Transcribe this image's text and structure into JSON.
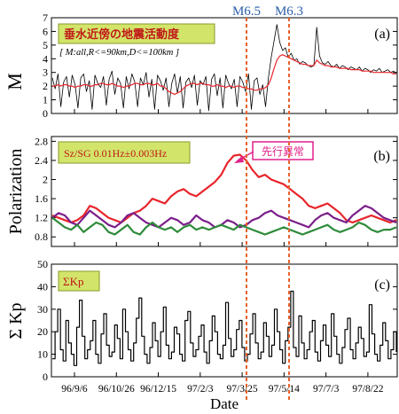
{
  "chart_data": [
    {
      "type": "line",
      "panel": "a",
      "panel_label": "(a)",
      "title_box": "垂水近傍の地震活動度",
      "subtitle": "[ M:all,R<=90km,D<=100km ]",
      "ylabel": "M",
      "ylim": [
        0,
        7
      ],
      "y_ticks": [
        "0",
        "1",
        "2",
        "3",
        "4",
        "5",
        "6",
        "7"
      ],
      "grid": false,
      "series": [
        {
          "color": "#000000",
          "values": [
            2.6,
            1.8,
            2.9,
            0.5,
            2.3,
            2.7,
            1.2,
            2.8,
            2.1,
            0.4,
            2.6,
            2.9,
            1.6,
            2.4,
            0.3,
            2.8,
            2.2,
            1.9,
            2.7,
            0.6,
            2.5,
            3.1,
            1.4,
            2.6,
            2.2,
            0.4,
            2.7,
            1.8,
            2.9,
            2.3,
            0.5,
            2.6,
            2.1,
            3.0,
            1.2,
            2.5,
            0.3,
            2.8,
            2.4,
            1.7,
            2.6,
            0.5,
            2.2,
            2.9,
            1.5,
            2.7,
            0.4,
            2.3,
            2.6,
            1.9,
            2.8,
            0.6,
            2.4,
            2.1,
            2.7,
            0.2,
            2.5,
            2.9,
            1.3,
            2.6,
            0.4,
            2.8,
            2.2,
            1.8,
            2.5,
            0.5,
            2.7,
            2.3,
            1.6,
            2.9,
            0.3,
            2.4,
            2.6,
            1.4,
            2.1,
            0.5,
            2.6,
            4.1,
            5.3,
            6.5,
            5.2,
            4.6,
            4.8,
            4.1,
            4.4,
            3.9,
            4.0,
            3.6,
            3.8,
            3.7,
            3.5,
            3.4,
            3.5,
            6.3,
            4.2,
            3.7,
            3.6,
            3.8,
            3.5,
            3.4,
            3.6,
            3.3,
            3.5,
            3.4,
            3.2,
            3.4,
            3.3,
            3.2,
            3.4,
            3.1,
            3.3,
            3.2,
            3.0,
            3.2,
            3.1,
            3.3,
            3.0,
            3.1,
            3.2,
            3.0,
            3.1,
            2.9
          ]
        },
        {
          "color": "#e8252b",
          "values": [
            2.0,
            2.0,
            2.1,
            2.0,
            2.1,
            2.1,
            2.0,
            2.0,
            1.9,
            2.0,
            2.0,
            2.1,
            2.1,
            2.0,
            2.0,
            2.1,
            2.1,
            2.2,
            2.2,
            2.1,
            2.1,
            2.2,
            2.1,
            2.0,
            2.0,
            1.9,
            2.0,
            2.0,
            2.1,
            2.2,
            2.2,
            2.1,
            2.1,
            2.2,
            2.2,
            2.1,
            2.1,
            2.2,
            2.0,
            2.0,
            1.8,
            1.6,
            1.5,
            1.4,
            1.5,
            1.6,
            1.8,
            2.0,
            2.1,
            2.2,
            2.2,
            2.1,
            2.2,
            2.2,
            2.1,
            2.1,
            2.0,
            2.0,
            2.1,
            2.0,
            2.0,
            1.9,
            2.0,
            2.0,
            1.9,
            2.0,
            2.0,
            1.9,
            1.9,
            1.8,
            1.8,
            1.7,
            1.7,
            1.8,
            1.8,
            1.9,
            2.1,
            2.6,
            3.3,
            3.9,
            4.2,
            4.3,
            4.2,
            4.1,
            4.0,
            3.9,
            3.8,
            3.7,
            3.6,
            3.6,
            3.5,
            3.5,
            3.5,
            3.9,
            3.7,
            3.6,
            3.5,
            3.5,
            3.4,
            3.4,
            3.4,
            3.3,
            3.3,
            3.3,
            3.3,
            3.2,
            3.2,
            3.2,
            3.2,
            3.1,
            3.1,
            3.1,
            3.1,
            3.0,
            3.0,
            3.0,
            3.0,
            3.0,
            3.0,
            3.0,
            2.9,
            2.9
          ]
        }
      ]
    },
    {
      "type": "line",
      "panel": "b",
      "panel_label": "(b)",
      "title_box": "Sz/SG  0.01Hz±0.003Hz",
      "annotation": "先行異常",
      "ylabel": "Polarization",
      "ylim": [
        0.6,
        2.9
      ],
      "y_ticks": [
        "0.8",
        "1.2",
        "1.6",
        "2",
        "2.4",
        "2.8"
      ],
      "grid": false,
      "series": [
        {
          "color": "#e8252b",
          "values": [
            1.25,
            1.2,
            1.15,
            1.1,
            1.15,
            1.25,
            1.45,
            1.4,
            1.3,
            1.2,
            1.15,
            1.1,
            1.2,
            1.3,
            1.35,
            1.45,
            1.6,
            1.55,
            1.5,
            1.65,
            1.75,
            1.8,
            1.7,
            1.65,
            1.75,
            1.85,
            1.95,
            2.1,
            2.35,
            2.5,
            2.52,
            2.4,
            2.2,
            2.05,
            2.1,
            2.0,
            1.95,
            1.9,
            1.8,
            1.7,
            1.6,
            1.45,
            1.4,
            1.45,
            1.5,
            1.4,
            1.3,
            1.15,
            1.1,
            1.15,
            1.2,
            1.25,
            1.2,
            1.15,
            1.1,
            1.15
          ]
        },
        {
          "color": "#7b1f8a",
          "values": [
            1.2,
            1.3,
            1.25,
            1.1,
            1.05,
            1.2,
            1.35,
            1.25,
            1.15,
            1.05,
            1.0,
            1.1,
            1.25,
            1.3,
            1.2,
            1.1,
            1.05,
            1.0,
            1.1,
            1.2,
            1.15,
            1.05,
            1.1,
            1.25,
            1.15,
            1.1,
            1.0,
            1.05,
            1.15,
            1.1,
            1.0,
            1.05,
            1.15,
            1.2,
            1.3,
            1.35,
            1.25,
            1.2,
            1.15,
            1.1,
            1.05,
            1.0,
            1.15,
            1.25,
            1.3,
            1.2,
            1.15,
            1.1,
            1.25,
            1.35,
            1.45,
            1.4,
            1.3,
            1.2,
            1.15,
            1.1
          ]
        },
        {
          "color": "#2e8b3a",
          "values": [
            1.2,
            1.1,
            1.0,
            0.95,
            1.05,
            0.9,
            1.0,
            1.1,
            1.05,
            0.9,
            0.85,
            0.95,
            1.05,
            0.9,
            0.85,
            1.0,
            1.1,
            1.0,
            0.95,
            1.0,
            0.9,
            1.0,
            1.05,
            0.95,
            1.0,
            0.95,
            1.0,
            1.05,
            1.0,
            0.95,
            1.05,
            1.0,
            0.95,
            0.9,
            0.85,
            0.9,
            0.95,
            1.0,
            0.95,
            0.9,
            0.85,
            0.9,
            0.95,
            1.0,
            1.05,
            0.95,
            0.9,
            0.95,
            1.0,
            1.1,
            1.05,
            0.95,
            0.9,
            0.95,
            0.95,
            1.0
          ]
        }
      ]
    },
    {
      "type": "line",
      "panel": "c",
      "panel_label": "(c)",
      "title_box": "ΣKp",
      "ylabel": "Σ Kp",
      "xlabel": "Date",
      "ylim": [
        0,
        50
      ],
      "y_ticks": [
        "0",
        "10",
        "20",
        "30",
        "40",
        "50"
      ],
      "x_ticks": [
        "96/9/6",
        "96/10/26",
        "96/12/15",
        "97/2/3",
        "97/3/25",
        "97/5/14",
        "97/7/3",
        "97/8/22"
      ],
      "grid": false,
      "series": [
        {
          "color": "#000000",
          "step": true,
          "values": [
            8,
            20,
            30,
            12,
            7,
            25,
            15,
            10,
            5,
            22,
            34,
            18,
            8,
            12,
            16,
            25,
            10,
            6,
            19,
            28,
            14,
            9,
            11,
            23,
            17,
            8,
            30,
            20,
            12,
            7,
            15,
            26,
            35,
            18,
            10,
            6,
            13,
            24,
            16,
            9,
            20,
            31,
            14,
            8,
            11,
            22,
            19,
            10,
            7,
            25,
            29,
            15,
            9,
            12,
            18,
            23,
            11,
            6,
            16,
            27,
            20,
            10,
            8,
            14,
            33,
            17,
            9,
            12,
            21,
            25,
            13,
            7,
            10,
            19,
            28,
            15,
            8,
            11,
            24,
            18,
            9,
            14,
            30,
            20,
            12,
            6,
            16,
            22,
            38,
            13,
            9,
            27,
            15,
            8,
            12,
            20,
            25,
            11,
            7,
            16,
            23,
            14,
            9,
            28,
            18,
            10,
            6,
            13,
            21,
            26,
            12,
            8,
            15,
            22,
            17,
            9,
            11,
            32,
            19,
            10,
            7,
            14,
            24,
            16,
            8,
            12,
            20,
            11
          ]
        }
      ]
    }
  ],
  "events": [
    {
      "label": "M6.5",
      "date": "97/3/26"
    },
    {
      "label": "M6.3",
      "date": "97/5/13"
    }
  ]
}
